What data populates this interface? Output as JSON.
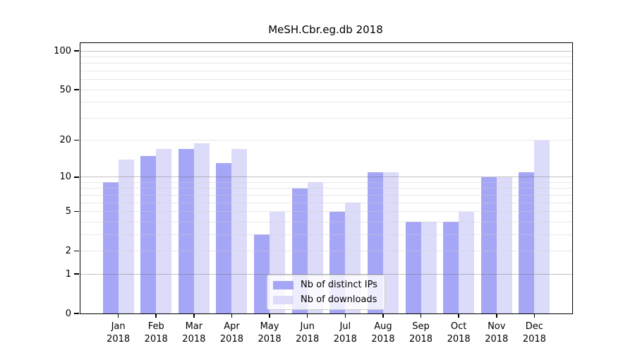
{
  "chart_data": {
    "type": "bar",
    "title": "MeSH.Cbr.eg.db 2018",
    "categories": [
      "Jan",
      "Feb",
      "Mar",
      "Apr",
      "May",
      "Jun",
      "Jul",
      "Aug",
      "Sep",
      "Oct",
      "Nov",
      "Dec"
    ],
    "category_year": "2018",
    "series": [
      {
        "name": "Nb of distinct IPs",
        "color": "#a6a6f6",
        "values": [
          9,
          15,
          17,
          13,
          3,
          8,
          5,
          11,
          4,
          4,
          10,
          11
        ]
      },
      {
        "name": "Nb of downloads",
        "color": "#dcdcfa",
        "values": [
          14,
          17,
          19,
          17,
          5,
          9,
          6,
          11,
          4,
          5,
          10,
          20
        ]
      }
    ],
    "xlabel": "",
    "ylabel": "",
    "yscale": "log1p",
    "ylim": [
      0,
      115
    ],
    "ytick_values": [
      0,
      1,
      2,
      5,
      10,
      20,
      50,
      100
    ],
    "ytick_labels": [
      "0",
      "1",
      "2",
      "5",
      "10",
      "20",
      "50",
      "100"
    ],
    "major_grid_values": [
      1,
      10,
      100
    ],
    "minor_grid_values": [
      2,
      3,
      4,
      5,
      6,
      7,
      8,
      9,
      20,
      30,
      40,
      50,
      60,
      70,
      80,
      90
    ],
    "grid": "on",
    "legend_position": "lower center"
  }
}
